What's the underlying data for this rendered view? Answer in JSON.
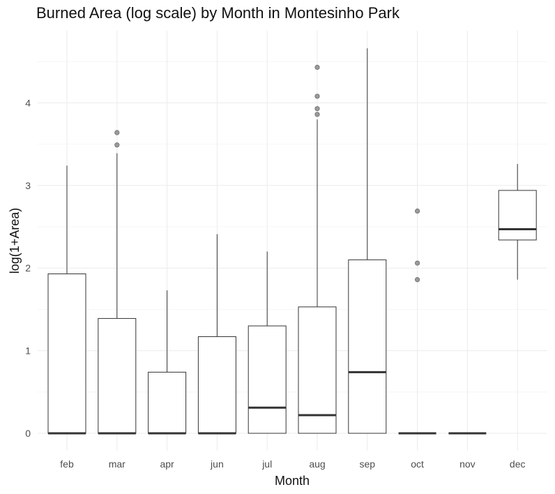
{
  "chart_data": {
    "type": "box",
    "title": "Burned Area (log scale) by Month in Montesinho Park",
    "xlabel": "Month",
    "ylabel": "log(1+Area)",
    "ylim": [
      -0.2,
      4.9
    ],
    "yticks": [
      0,
      1,
      2,
      3,
      4
    ],
    "grid": true,
    "categories": [
      "feb",
      "mar",
      "apr",
      "jun",
      "jul",
      "aug",
      "sep",
      "oct",
      "nov",
      "dec"
    ],
    "boxes": [
      {
        "category": "feb",
        "lower_whisker": 0,
        "q1": 0,
        "median": 0,
        "q3": 1.93,
        "upper_whisker": 3.24,
        "outliers": []
      },
      {
        "category": "mar",
        "lower_whisker": 0,
        "q1": 0,
        "median": 0,
        "q3": 1.39,
        "upper_whisker": 3.39,
        "outliers": [
          3.49,
          3.64
        ]
      },
      {
        "category": "apr",
        "lower_whisker": 0,
        "q1": 0,
        "median": 0,
        "q3": 0.74,
        "upper_whisker": 1.73,
        "outliers": []
      },
      {
        "category": "jun",
        "lower_whisker": 0,
        "q1": 0,
        "median": 0,
        "q3": 1.17,
        "upper_whisker": 2.41,
        "outliers": []
      },
      {
        "category": "jul",
        "lower_whisker": 0,
        "q1": 0,
        "median": 0.31,
        "q3": 1.3,
        "upper_whisker": 2.2,
        "outliers": []
      },
      {
        "category": "aug",
        "lower_whisker": 0,
        "q1": 0,
        "median": 0.22,
        "q3": 1.53,
        "upper_whisker": 3.8,
        "outliers": [
          3.86,
          3.93,
          4.08,
          4.43
        ]
      },
      {
        "category": "sep",
        "lower_whisker": 0,
        "q1": 0,
        "median": 0.74,
        "q3": 2.1,
        "upper_whisker": 4.66,
        "outliers": []
      },
      {
        "category": "oct",
        "lower_whisker": 0,
        "q1": 0,
        "median": 0,
        "q3": 0,
        "upper_whisker": 0,
        "outliers": [
          1.86,
          2.06,
          2.69
        ]
      },
      {
        "category": "nov",
        "lower_whisker": 0,
        "q1": 0,
        "median": 0,
        "q3": 0,
        "upper_whisker": 0,
        "outliers": []
      },
      {
        "category": "dec",
        "lower_whisker": 1.86,
        "q1": 2.34,
        "median": 2.47,
        "q3": 2.94,
        "upper_whisker": 3.26,
        "outliers": []
      }
    ]
  }
}
